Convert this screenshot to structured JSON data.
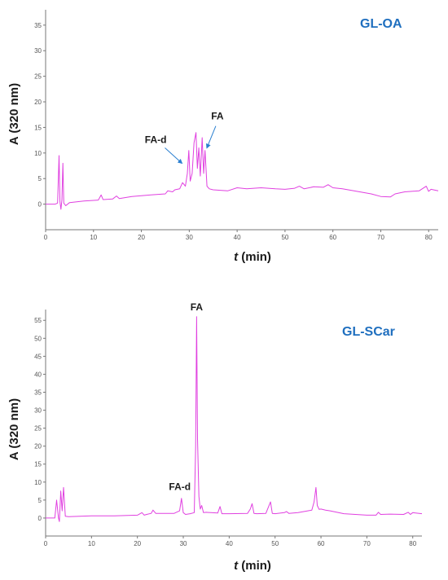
{
  "chart_data": [
    {
      "type": "line",
      "title": "GL-OA",
      "title_color": "#1f6fbf",
      "xlabel_italic": "t",
      "xlabel_rest": " (min)",
      "ylabel": "A (320 nm)",
      "xlim": [
        0,
        82
      ],
      "ylim": [
        -5,
        38
      ],
      "xticks": [
        0,
        10,
        20,
        30,
        40,
        50,
        60,
        70,
        80
      ],
      "yticks": [
        0,
        5,
        10,
        15,
        20,
        25,
        30,
        35
      ],
      "line_color": "#e040e0",
      "arrow_color": "#2a7fd0",
      "series": [
        {
          "x": [
            0,
            2,
            2.5,
            2.8,
            3.0,
            3.2,
            3.4,
            3.6,
            3.8,
            4.2,
            5,
            8,
            11,
            11.6,
            12,
            14,
            14.8,
            15.4,
            18,
            22,
            25,
            25.5,
            26.5,
            27,
            28,
            28.6,
            29.2,
            29.6,
            29.9,
            30.2,
            30.6,
            31.0,
            31.4,
            31.7,
            32.0,
            32.3,
            32.7,
            33.0,
            33.3,
            33.7,
            34.2,
            35,
            38,
            40,
            42,
            45,
            48,
            50,
            52,
            53,
            54,
            56,
            58,
            59,
            60,
            62,
            65,
            68,
            70,
            72,
            73,
            75,
            78,
            79.5,
            80,
            80.5,
            82
          ],
          "y": [
            0,
            0,
            0.2,
            9.5,
            0.5,
            -1,
            0.8,
            8,
            0.2,
            -0.3,
            0.3,
            0.6,
            0.8,
            1.8,
            0.9,
            1.0,
            1.6,
            1.1,
            1.5,
            1.8,
            2.0,
            2.6,
            2.4,
            2.8,
            3.0,
            4.2,
            3.5,
            6.0,
            10.5,
            4.5,
            6.0,
            12.0,
            14.0,
            7.0,
            11.0,
            5.5,
            13.0,
            6.0,
            10.5,
            3.5,
            3.0,
            2.8,
            2.6,
            3.2,
            3.0,
            3.2,
            3.0,
            2.9,
            3.1,
            3.5,
            3.0,
            3.4,
            3.3,
            3.8,
            3.2,
            3.0,
            2.5,
            2.0,
            1.5,
            1.4,
            2.0,
            2.4,
            2.6,
            3.5,
            2.5,
            2.9,
            2.6
          ]
        }
      ],
      "annotations": [
        {
          "label": "FA-d",
          "x": 29.0,
          "y": 7.5
        },
        {
          "label": "FA",
          "x": 33.5,
          "y": 10.5
        }
      ]
    },
    {
      "type": "line",
      "title": "GL-SCar",
      "title_color": "#1f6fbf",
      "xlabel_italic": "t",
      "xlabel_rest": " (min)",
      "ylabel": "A (320 nm)",
      "xlim": [
        0,
        82
      ],
      "ylim": [
        -5,
        58
      ],
      "xticks": [
        0,
        10,
        20,
        30,
        40,
        50,
        60,
        70,
        80
      ],
      "yticks": [
        0,
        5,
        10,
        15,
        20,
        25,
        30,
        35,
        40,
        45,
        50,
        55
      ],
      "line_color": "#e040e0",
      "series": [
        {
          "x": [
            0,
            2,
            2.4,
            2.8,
            3.0,
            3.3,
            3.6,
            3.9,
            4.3,
            5,
            10,
            15,
            20,
            21,
            21.5,
            22,
            23,
            23.4,
            24,
            28,
            29.2,
            29.6,
            30.0,
            30.5,
            31.5,
            32.4,
            32.7,
            32.9,
            33.1,
            33.4,
            33.7,
            34.0,
            34.4,
            35,
            36,
            37.5,
            38,
            38.4,
            40,
            44,
            44.6,
            45.0,
            45.4,
            46,
            48,
            49.0,
            49.4,
            50,
            52,
            52.5,
            53,
            55,
            58,
            58.5,
            58.9,
            59.2,
            59.6,
            60,
            61,
            62,
            65,
            70,
            72,
            72.5,
            73,
            75,
            78,
            79,
            79.5,
            80,
            82
          ],
          "y": [
            0,
            0,
            5,
            0,
            -1,
            7.5,
            2,
            8.5,
            0.5,
            0.4,
            0.6,
            0.6,
            0.8,
            1.5,
            0.8,
            1.0,
            1.3,
            2.2,
            1.3,
            1.3,
            2.0,
            5.5,
            1.5,
            1.0,
            1.2,
            1.5,
            20,
            56,
            22,
            6,
            2.5,
            3.5,
            1.5,
            1.6,
            1.5,
            1.4,
            3.2,
            1.2,
            1.2,
            1.3,
            2.5,
            4.0,
            1.3,
            1.2,
            1.3,
            4.5,
            1.3,
            1.2,
            1.5,
            1.8,
            1.3,
            1.5,
            2.2,
            4.5,
            8.5,
            3.5,
            2.4,
            2.5,
            2.2,
            2.0,
            1.2,
            0.8,
            0.8,
            1.6,
            1.0,
            1.1,
            1.0,
            1.6,
            1.0,
            1.5,
            1.2
          ]
        }
      ],
      "annotations": [
        {
          "label": "FA-d",
          "x": 29.6,
          "y": 6.0
        },
        {
          "label": "FA",
          "x": 32.9,
          "y": 56.0
        }
      ]
    }
  ]
}
